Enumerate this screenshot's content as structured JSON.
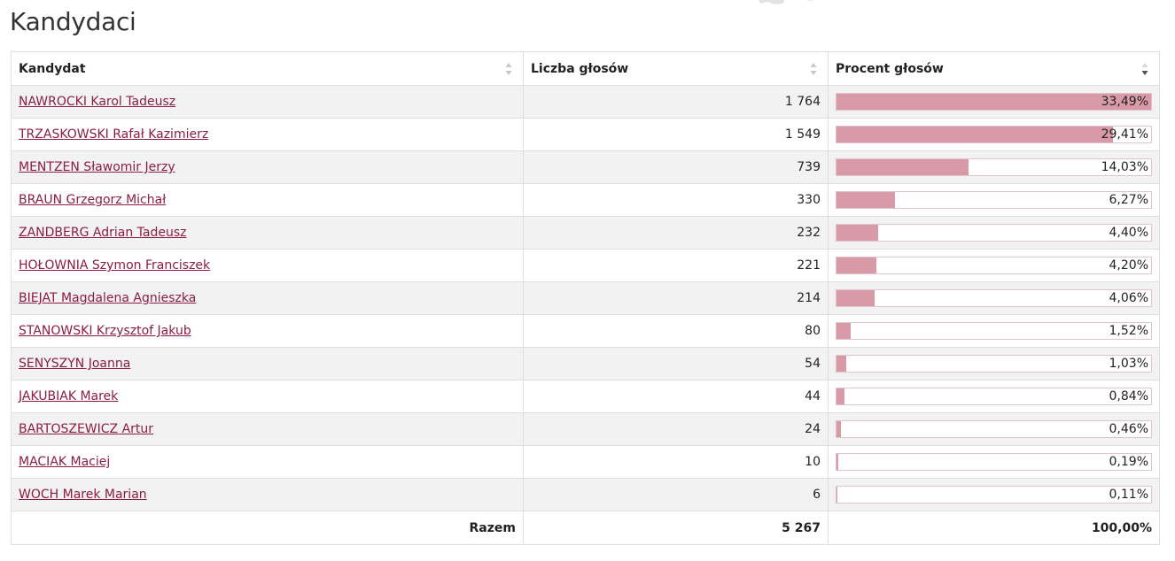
{
  "page": {
    "title": "Kandydaci",
    "accent_color": "#8b1e3f",
    "bar_color": "#d99aa8"
  },
  "table": {
    "headers": [
      "Kandydat",
      "Liczba głosów",
      "Procent głosów"
    ],
    "sort": {
      "column": "Procent głosów",
      "direction": "desc"
    },
    "rows": [
      {
        "name": "NAWROCKI Karol Tadeusz",
        "votes": "1 764",
        "percent": "33,49%",
        "value": 33.49
      },
      {
        "name": "TRZASKOWSKI Rafał Kazimierz",
        "votes": "1 549",
        "percent": "29,41%",
        "value": 29.41
      },
      {
        "name": "MENTZEN Sławomir Jerzy",
        "votes": "739",
        "percent": "14,03%",
        "value": 14.03
      },
      {
        "name": "BRAUN Grzegorz Michał",
        "votes": "330",
        "percent": "6,27%",
        "value": 6.27
      },
      {
        "name": "ZANDBERG Adrian Tadeusz",
        "votes": "232",
        "percent": "4,40%",
        "value": 4.4
      },
      {
        "name": "HOŁOWNIA Szymon Franciszek",
        "votes": "221",
        "percent": "4,20%",
        "value": 4.2
      },
      {
        "name": "BIEJAT Magdalena Agnieszka",
        "votes": "214",
        "percent": "4,06%",
        "value": 4.06
      },
      {
        "name": "STANOWSKI Krzysztof Jakub",
        "votes": "80",
        "percent": "1,52%",
        "value": 1.52
      },
      {
        "name": "SENYSZYN Joanna",
        "votes": "54",
        "percent": "1,03%",
        "value": 1.03
      },
      {
        "name": "JAKUBIAK Marek",
        "votes": "44",
        "percent": "0,84%",
        "value": 0.84
      },
      {
        "name": "BARTOSZEWICZ Artur",
        "votes": "24",
        "percent": "0,46%",
        "value": 0.46
      },
      {
        "name": "MACIAK Maciej",
        "votes": "10",
        "percent": "0,19%",
        "value": 0.19
      },
      {
        "name": "WOCH Marek Marian",
        "votes": "6",
        "percent": "0,11%",
        "value": 0.11
      }
    ],
    "bar_max_percent": 33.49,
    "footer": {
      "label": "Razem",
      "votes": "5 267",
      "percent": "100,00%"
    }
  }
}
